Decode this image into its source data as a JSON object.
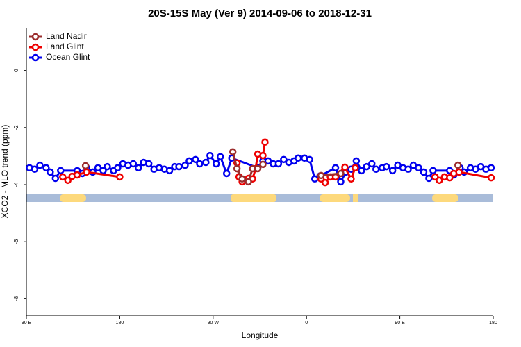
{
  "chart_data": {
    "type": "line",
    "title": "20S-15S May (Ver 9)   2014-09-06 to 2018-12-31",
    "xlabel": "Longitude",
    "ylabel": "XCO2 - MLO trend (ppm)",
    "xlim": [
      90,
      540
    ],
    "xticks": [
      {
        "value": 90,
        "label": "90 E"
      },
      {
        "value": 180,
        "label": "180"
      },
      {
        "value": 270,
        "label": "90 W"
      },
      {
        "value": 360,
        "label": "0"
      },
      {
        "value": 450,
        "label": "90 E"
      },
      {
        "value": 540,
        "label": "180"
      }
    ],
    "ylim": [
      -8.6,
      1.5
    ],
    "yticks": [
      0,
      -2,
      -4,
      -6,
      -8
    ],
    "legend": "upper left",
    "series": [
      {
        "name": "Land Nadir",
        "color": "#9b2d2d",
        "x": [
          147,
          200,
          289,
          293,
          298,
          304,
          308,
          313,
          318,
          340,
          374,
          393,
          450,
          506
        ],
        "values": [
          -3.34,
          null,
          -2.85,
          -3.44,
          -3.8,
          -3.9,
          -3.44,
          -3.44,
          -3.29,
          null,
          -3.68,
          -3.61,
          null,
          -3.32
        ]
      },
      {
        "name": "Land Glint",
        "color": "#ee0000",
        "x": [
          125,
          130,
          134,
          139,
          148,
          180,
          240,
          293,
          295,
          298,
          304,
          308,
          311,
          313,
          318,
          320,
          350,
          374,
          378,
          383,
          388,
          397,
          403,
          407,
          450,
          484,
          488,
          493,
          498,
          502,
          507,
          538
        ],
        "values": [
          -3.73,
          -3.85,
          -3.71,
          -3.66,
          -3.56,
          -3.73,
          null,
          -3.24,
          -3.73,
          -3.9,
          -3.78,
          -3.8,
          -3.44,
          -2.93,
          -2.98,
          -2.51,
          null,
          -3.8,
          -3.93,
          -3.73,
          -3.73,
          -3.39,
          -3.8,
          -3.41,
          null,
          -3.73,
          -3.85,
          -3.73,
          -3.76,
          -3.61,
          -3.56,
          -3.76
        ]
      },
      {
        "name": "Ocean Glint",
        "color": "#0000ee",
        "x": [
          93,
          98,
          103,
          109,
          113,
          118,
          123,
          139,
          144,
          148,
          154,
          159,
          164,
          168,
          174,
          178,
          183,
          188,
          193,
          198,
          203,
          208,
          213,
          218,
          223,
          228,
          233,
          237,
          243,
          247,
          253,
          257,
          263,
          267,
          273,
          277,
          283,
          288,
          313,
          318,
          323,
          328,
          333,
          338,
          343,
          348,
          352,
          358,
          363,
          368,
          373,
          388,
          393,
          398,
          403,
          408,
          413,
          418,
          423,
          427,
          433,
          437,
          443,
          448,
          453,
          458,
          463,
          468,
          473,
          478,
          482,
          498,
          502,
          508,
          512,
          518,
          523,
          528,
          533,
          538
        ],
        "values": [
          -3.41,
          -3.46,
          -3.32,
          -3.41,
          -3.56,
          -3.78,
          -3.51,
          -3.51,
          -3.61,
          -3.41,
          -3.56,
          -3.41,
          -3.51,
          -3.37,
          -3.51,
          -3.41,
          -3.27,
          -3.32,
          -3.27,
          -3.41,
          -3.22,
          -3.27,
          -3.46,
          -3.41,
          -3.46,
          -3.51,
          -3.37,
          -3.37,
          -3.32,
          -3.17,
          -3.12,
          -3.27,
          -3.22,
          -2.98,
          -3.27,
          -3.02,
          -3.61,
          -3.07,
          -3.41,
          -3.17,
          -3.17,
          -3.27,
          -3.27,
          -3.12,
          -3.22,
          -3.17,
          -3.07,
          -3.07,
          -3.12,
          -3.8,
          -3.7,
          -3.41,
          -3.9,
          -3.56,
          -3.46,
          -3.17,
          -3.51,
          -3.37,
          -3.27,
          -3.46,
          -3.41,
          -3.37,
          -3.51,
          -3.32,
          -3.41,
          -3.46,
          -3.32,
          -3.41,
          -3.56,
          -3.78,
          -3.51,
          -3.51,
          -3.66,
          -3.41,
          -3.56,
          -3.41,
          -3.46,
          -3.37,
          -3.46,
          -3.41
        ]
      }
    ]
  }
}
